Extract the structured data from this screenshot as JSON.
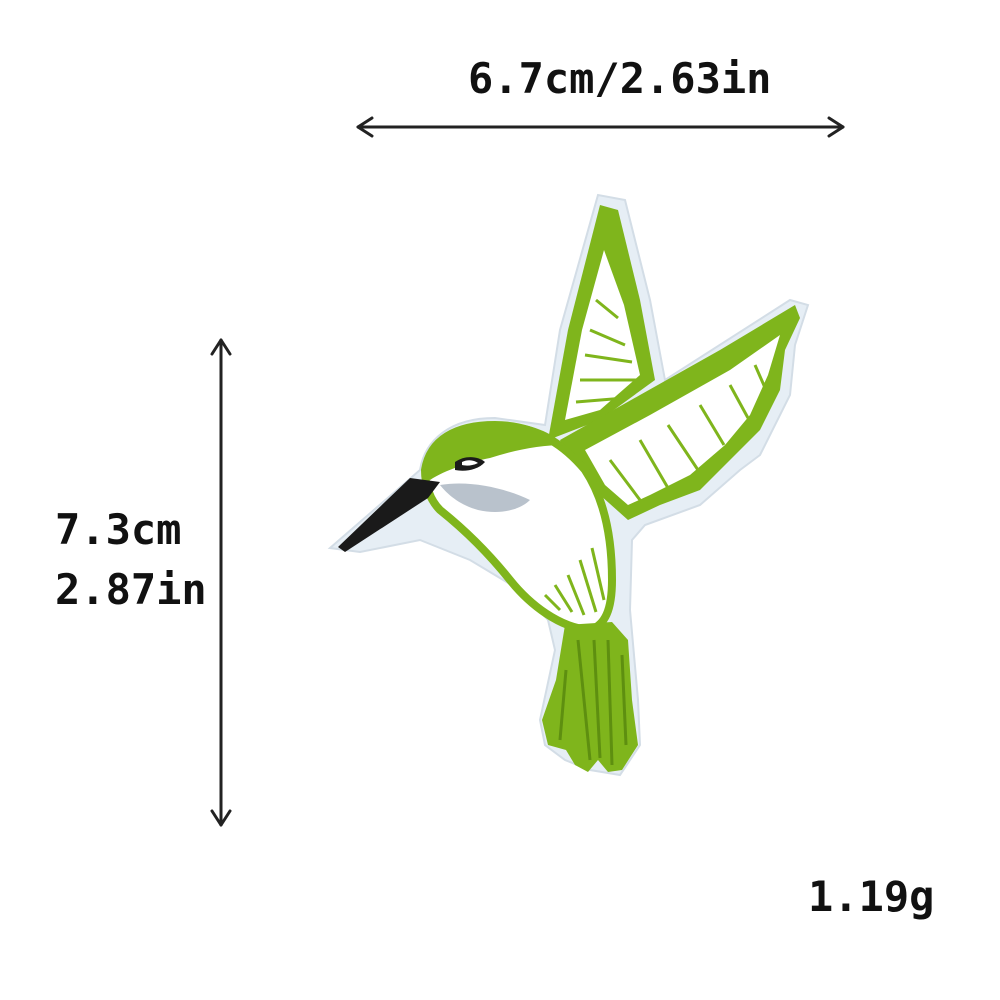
{
  "dimensions": {
    "width_text": "6.7cm/2.63in",
    "height_cm_text": "7.3cm",
    "height_in_text": "2.87in"
  },
  "weight_text": "1.19g",
  "product": {
    "icon": "hummingbird-patch-icon",
    "colors": {
      "green": "#7fb51c",
      "green_dark": "#5e8f10",
      "white": "#ffffff",
      "backing": "#dde8f0",
      "grey": "#b9c2cc",
      "beak": "#1a1a1a"
    }
  }
}
